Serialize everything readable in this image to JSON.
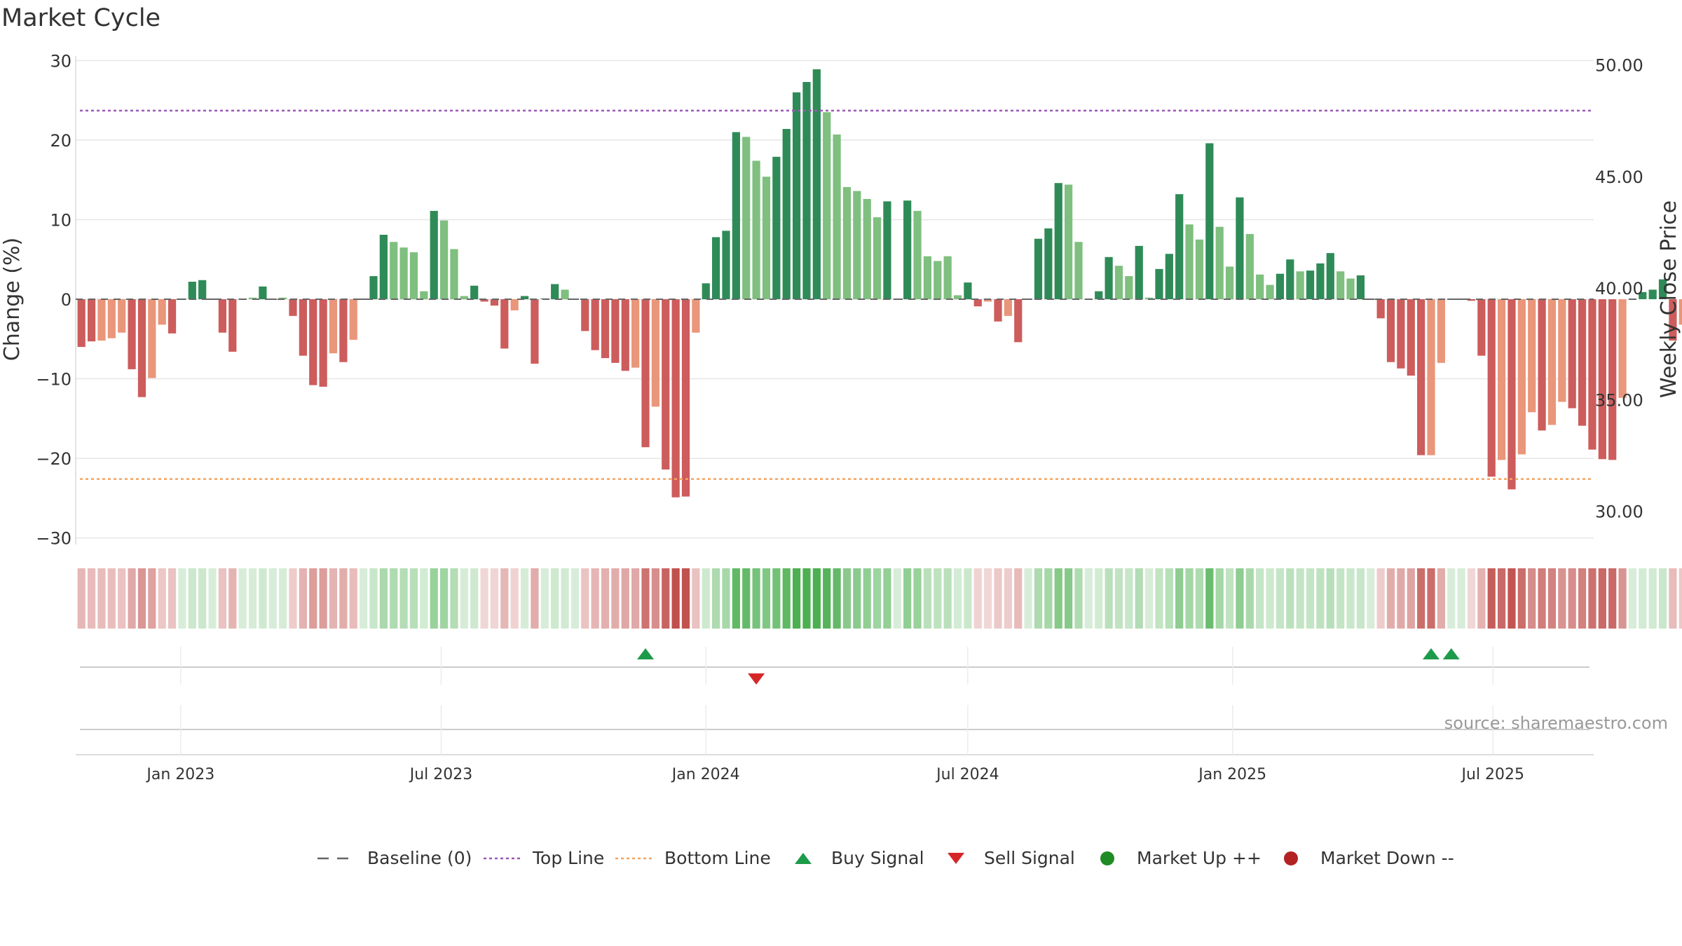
{
  "chart_data": {
    "type": "bar",
    "title": "Market Cycle",
    "ylabel": "Change (%)",
    "y2label": "Weekly Close Price",
    "ylim": [
      -31,
      31
    ],
    "y2lim": [
      28.45,
      50.55
    ],
    "yticks": [
      "30",
      "20",
      "10",
      "0",
      "−10",
      "−20",
      "−30"
    ],
    "yticks_values": [
      30,
      20,
      10,
      0,
      -10,
      -20,
      -30
    ],
    "y2ticks": [
      "50.00",
      "45.00",
      "40.00",
      "35.00",
      "30.00"
    ],
    "y2ticks_values": [
      50,
      45,
      40,
      35,
      30
    ],
    "xlim": [
      "2022-10-20",
      "2025-09-09"
    ],
    "xticks": [
      "Jan 2023",
      "Jul 2023",
      "Jan 2024",
      "Jul 2024",
      "Jan 2025",
      "Jul 2025"
    ],
    "xticks_dates": [
      "2023-01-01",
      "2023-07-01",
      "2024-01-01",
      "2024-07-01",
      "2025-01-01",
      "2025-07-01"
    ],
    "week_start": "2022-10-24",
    "top_line": 23.7,
    "bottom_line": -22.6,
    "source": "source: sharemaestro.com",
    "colors": {
      "up_strong": "#2e8b57",
      "up_weak": "#7fbf7f",
      "down_strong": "#cd5c5c",
      "down_weak": "#e9967a",
      "top_line": "#9b59b6",
      "bottom_line": "#f4a460",
      "buy": "#1e9b4a",
      "sell": "#d62728",
      "market_up": "#1f8b24",
      "market_down": "#b22222"
    },
    "series": [
      {
        "name": "Change (%)",
        "values": [
          -6,
          -5.3,
          -5.2,
          -4.9,
          -4.2,
          -8.8,
          -12.3,
          -9.9,
          -3.2,
          -4.3,
          0,
          2.2,
          2.4,
          0,
          -4.2,
          -6.6,
          0,
          0.2,
          1.6,
          0,
          0.2,
          -2.1,
          -7.1,
          -10.8,
          -11,
          -6.8,
          -7.9,
          -5.1,
          0,
          2.9,
          8.1,
          7.2,
          6.5,
          5.9,
          1,
          11.1,
          9.9,
          6.3,
          0.4,
          1.7,
          -0.3,
          -0.8,
          -6.2,
          -1.4,
          0.4,
          -8.1,
          0.1,
          1.9,
          1.2,
          0,
          -4,
          -6.4,
          -7.4,
          -8,
          -9,
          -8.6,
          -18.6,
          -13.5,
          -21.4,
          -24.9,
          -24.8,
          -4.2,
          2,
          7.8,
          8.6,
          21,
          20.4,
          17.4,
          15.4,
          17.9,
          21.4,
          26,
          27.3,
          28.9,
          23.5,
          20.7,
          14.1,
          13.6,
          12.6,
          10.3,
          12.3,
          0,
          12.4,
          11.1,
          5.4,
          4.8,
          5.4,
          0.5,
          2.1,
          -0.9,
          -0.3,
          -2.8,
          -2.1,
          -5.4,
          0,
          7.6,
          8.9,
          14.6,
          14.4,
          7.2,
          0,
          1,
          5.3,
          4.2,
          2.9,
          6.7,
          0.2,
          3.8,
          5.7,
          13.2,
          9.4,
          7.5,
          19.6,
          9.1,
          4.1,
          12.8,
          8.2,
          3.1,
          1.8,
          3.2,
          5,
          3.5,
          3.6,
          4.5,
          5.8,
          3.5,
          2.6,
          3,
          0,
          -2.4,
          -7.9,
          -8.7,
          -9.6,
          -19.6,
          -19.6,
          -8,
          0,
          0,
          -0.2,
          -7.1,
          -22.3,
          -20.2,
          -23.9,
          -19.5,
          -14.2,
          -16.5,
          -15.8,
          -12.9,
          -13.7,
          -15.9,
          -18.9,
          -20.1,
          -20.2,
          -12.4,
          0,
          0.9,
          1.2,
          2.5,
          -5.2,
          -3.2
        ],
        "strong": [
          1,
          1,
          0,
          0,
          0,
          1,
          1,
          0,
          0,
          1,
          1,
          1,
          1,
          1,
          1,
          1,
          0,
          0,
          1,
          1,
          0,
          1,
          1,
          1,
          1,
          0,
          1,
          0,
          1,
          1,
          1,
          0,
          0,
          0,
          0,
          1,
          0,
          0,
          0,
          1,
          1,
          1,
          1,
          0,
          1,
          1,
          1,
          1,
          0,
          1,
          1,
          1,
          1,
          1,
          1,
          0,
          1,
          0,
          1,
          1,
          1,
          0,
          1,
          1,
          1,
          1,
          0,
          0,
          0,
          1,
          1,
          1,
          1,
          1,
          0,
          0,
          0,
          0,
          0,
          0,
          1,
          1,
          1,
          0,
          0,
          0,
          0,
          0,
          1,
          1,
          0,
          1,
          0,
          1,
          1,
          1,
          1,
          1,
          0,
          0,
          1,
          1,
          1,
          0,
          0,
          1,
          0,
          1,
          1,
          1,
          0,
          0,
          1,
          0,
          0,
          1,
          0,
          0,
          0,
          1,
          1,
          0,
          1,
          1,
          1,
          0,
          0,
          1,
          1,
          1,
          1,
          1,
          1,
          1,
          0,
          0,
          1,
          1,
          1,
          1,
          1,
          0,
          1,
          0,
          0,
          1,
          0,
          0,
          1,
          1,
          1,
          1,
          1,
          0,
          1,
          1,
          1,
          1,
          1,
          0
        ]
      },
      {
        "name": "Weekly Close Price",
        "values": []
      }
    ],
    "buy_signals": [
      "2023-11-20",
      "2025-05-19",
      "2025-06-02"
    ],
    "sell_signals": [
      "2024-02-05"
    ],
    "legend": [
      {
        "label": "Baseline (0)",
        "kind": "dash",
        "color": "#666666"
      },
      {
        "label": "Top Line",
        "kind": "dot",
        "color": "#9b59b6"
      },
      {
        "label": "Bottom Line",
        "kind": "dot",
        "color": "#f4a460"
      },
      {
        "label": "Buy Signal",
        "kind": "tri-up",
        "color": "#1e9b4a"
      },
      {
        "label": "Sell Signal",
        "kind": "tri-down",
        "color": "#d62728"
      },
      {
        "label": "Market Up ++",
        "kind": "circle",
        "color": "#1f8b24"
      },
      {
        "label": "Market Down --",
        "kind": "circle",
        "color": "#b22222"
      }
    ],
    "legend_position": "bottom-center",
    "grid": true
  }
}
